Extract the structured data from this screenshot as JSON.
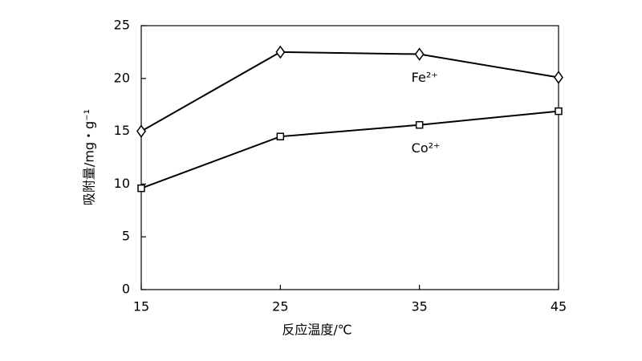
{
  "chart_data": {
    "type": "line",
    "x": [
      15,
      25,
      35,
      45
    ],
    "series": [
      {
        "name": "Fe²⁺",
        "color": "#000000",
        "marker": "diamond",
        "values": [
          15.0,
          22.5,
          22.3,
          20.1
        ]
      },
      {
        "name": "Co²⁺",
        "color": "#000000",
        "marker": "square",
        "values": [
          9.6,
          14.5,
          15.6,
          16.9
        ]
      }
    ],
    "xlabel": "反应温度/℃",
    "ylabel": "吸附量/mg・g⁻¹",
    "xlim": [
      15,
      45
    ],
    "xticks": [
      15,
      25,
      35,
      45
    ],
    "ylim": [
      0,
      25
    ],
    "yticks": [
      0,
      5,
      10,
      15,
      20,
      25
    ],
    "grid": false
  }
}
